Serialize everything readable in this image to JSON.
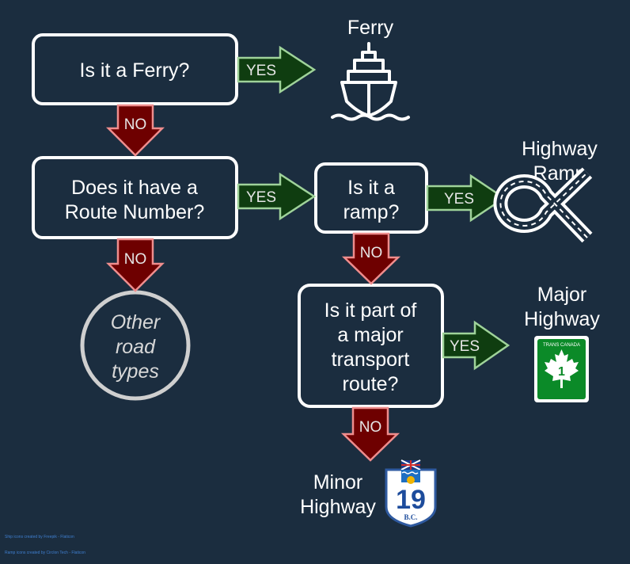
{
  "colors": {
    "background": "#1b2d3f",
    "yes_fill": "#0f3d10",
    "yes_stroke": "#9fd39a",
    "no_fill": "#6e0000",
    "no_stroke": "#ef8d8d"
  },
  "nodes": {
    "ferry_q": {
      "lines": [
        "Is it a Ferry?"
      ]
    },
    "route_q": {
      "lines": [
        "Does it have a",
        "Route Number?"
      ]
    },
    "ramp_q": {
      "lines": [
        "Is it a",
        "ramp?"
      ]
    },
    "major_q": {
      "lines": [
        "Is it part of",
        "a major",
        "transport",
        "route?"
      ]
    },
    "other": {
      "lines": [
        "Other",
        "road",
        "types"
      ]
    }
  },
  "arrows": {
    "yes_label": "YES",
    "no_label": "NO"
  },
  "outcomes": {
    "ferry": {
      "label": [
        "Ferry"
      ],
      "icon": "ship-icon"
    },
    "ramp": {
      "label": [
        "Highway",
        "Ramp"
      ],
      "icon": "highway-ramp-icon"
    },
    "major": {
      "label": [
        "Major",
        "Highway"
      ],
      "icon": "trans-canada-shield-icon",
      "shield_text": "TRANS CANADA",
      "shield_number": "1"
    },
    "minor": {
      "label": [
        "Minor",
        "Highway"
      ],
      "icon": "bc-highway-shield-icon",
      "shield_number": "19",
      "shield_sub": "B.C."
    }
  },
  "credits": [
    "Ship icons created by Freepik - Flaticon",
    "Ramp icons created by Circlon Tech - Flaticon"
  ]
}
